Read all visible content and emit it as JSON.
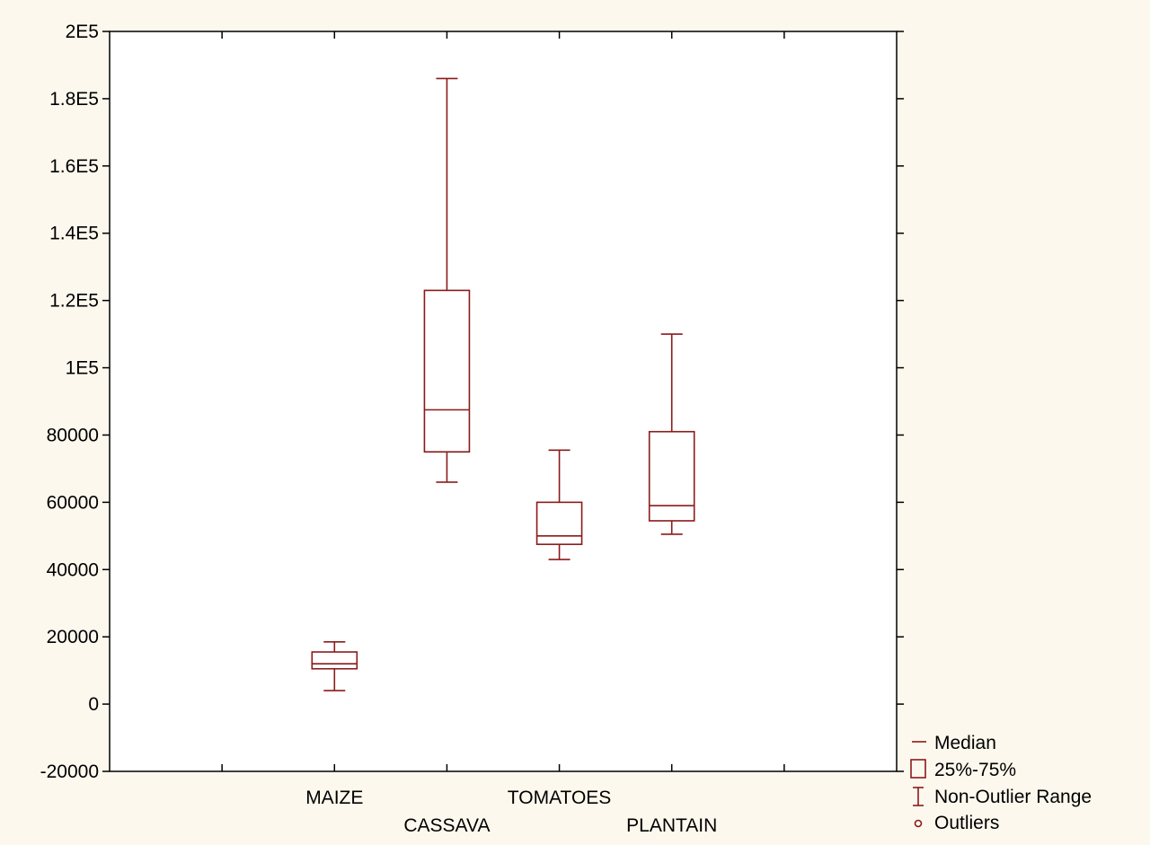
{
  "chart_data": {
    "type": "boxplot",
    "categories": [
      "MAIZE",
      "CASSAVA",
      "TOMATOES",
      "PLANTAIN"
    ],
    "boxes": [
      {
        "category": "MAIZE",
        "whisker_min": 4000,
        "q1": 10500,
        "median": 12000,
        "q3": 15500,
        "whisker_max": 18500
      },
      {
        "category": "CASSAVA",
        "whisker_min": 66000,
        "q1": 75000,
        "median": 87500,
        "q3": 123000,
        "whisker_max": 186000
      },
      {
        "category": "TOMATOES",
        "whisker_min": 43000,
        "q1": 47500,
        "median": 50000,
        "q3": 60000,
        "whisker_max": 75500
      },
      {
        "category": "PLANTAIN",
        "whisker_min": 50500,
        "q1": 54500,
        "median": 59000,
        "q3": 81000,
        "whisker_max": 110000
      }
    ],
    "ylim": [
      -20000,
      200000
    ],
    "yticks": [
      -20000,
      0,
      20000,
      40000,
      60000,
      80000,
      100000,
      120000,
      140000,
      160000,
      180000,
      200000
    ],
    "ytick_labels": [
      "-20000",
      "0",
      "20000",
      "40000",
      "60000",
      "80000",
      "1E5",
      "1.2E5",
      "1.4E5",
      "1.6E5",
      "1.8E5",
      "2E5"
    ],
    "legend": [
      "Median",
      "25%-75%",
      "Non-Outlier Range",
      "Outliers"
    ],
    "legend_position": "bottom-right",
    "colors": {
      "series": "#8b1a1a",
      "background": "#fdf8ee",
      "plot_area": "#ffffff",
      "axis": "#000000"
    }
  }
}
